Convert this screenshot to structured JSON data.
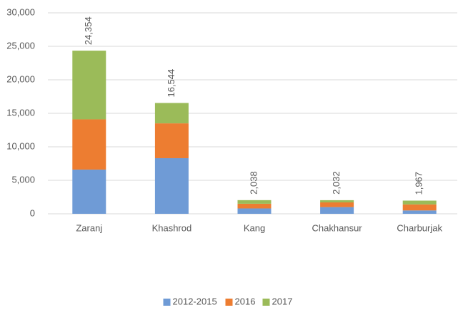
{
  "chart_data": {
    "type": "stacked_bar",
    "categories": [
      "Zaranj",
      "Khashrod",
      "Kang",
      "Chakhansur",
      "Charburjak"
    ],
    "series": [
      {
        "name": "2012-2015",
        "color": "#6f9bd6",
        "values": [
          6600,
          8300,
          800,
          1000,
          500
        ]
      },
      {
        "name": "2016",
        "color": "#ed7d31",
        "values": [
          7500,
          5200,
          700,
          700,
          900
        ]
      },
      {
        "name": "2017",
        "color": "#9bbb59",
        "values": [
          10254,
          3044,
          538,
          332,
          567
        ]
      }
    ],
    "totals": [
      24354,
      16544,
      2038,
      2032,
      1967
    ],
    "total_labels": [
      "24,354",
      "16,544",
      "2,038",
      "2,032",
      "1,967"
    ],
    "ylim": [
      0,
      30000
    ],
    "yticks": [
      0,
      {
        "value": 5000,
        "label": "5,000"
      },
      {
        "value": 10000,
        "label": "10,000"
      },
      {
        "value": 15000,
        "label": "15,000"
      },
      {
        "value": 20000,
        "label": "20,000"
      },
      {
        "value": 25000,
        "label": "25,000"
      },
      {
        "value": 30000,
        "label": "30,000"
      }
    ],
    "grid": true,
    "legend": "bottom"
  }
}
